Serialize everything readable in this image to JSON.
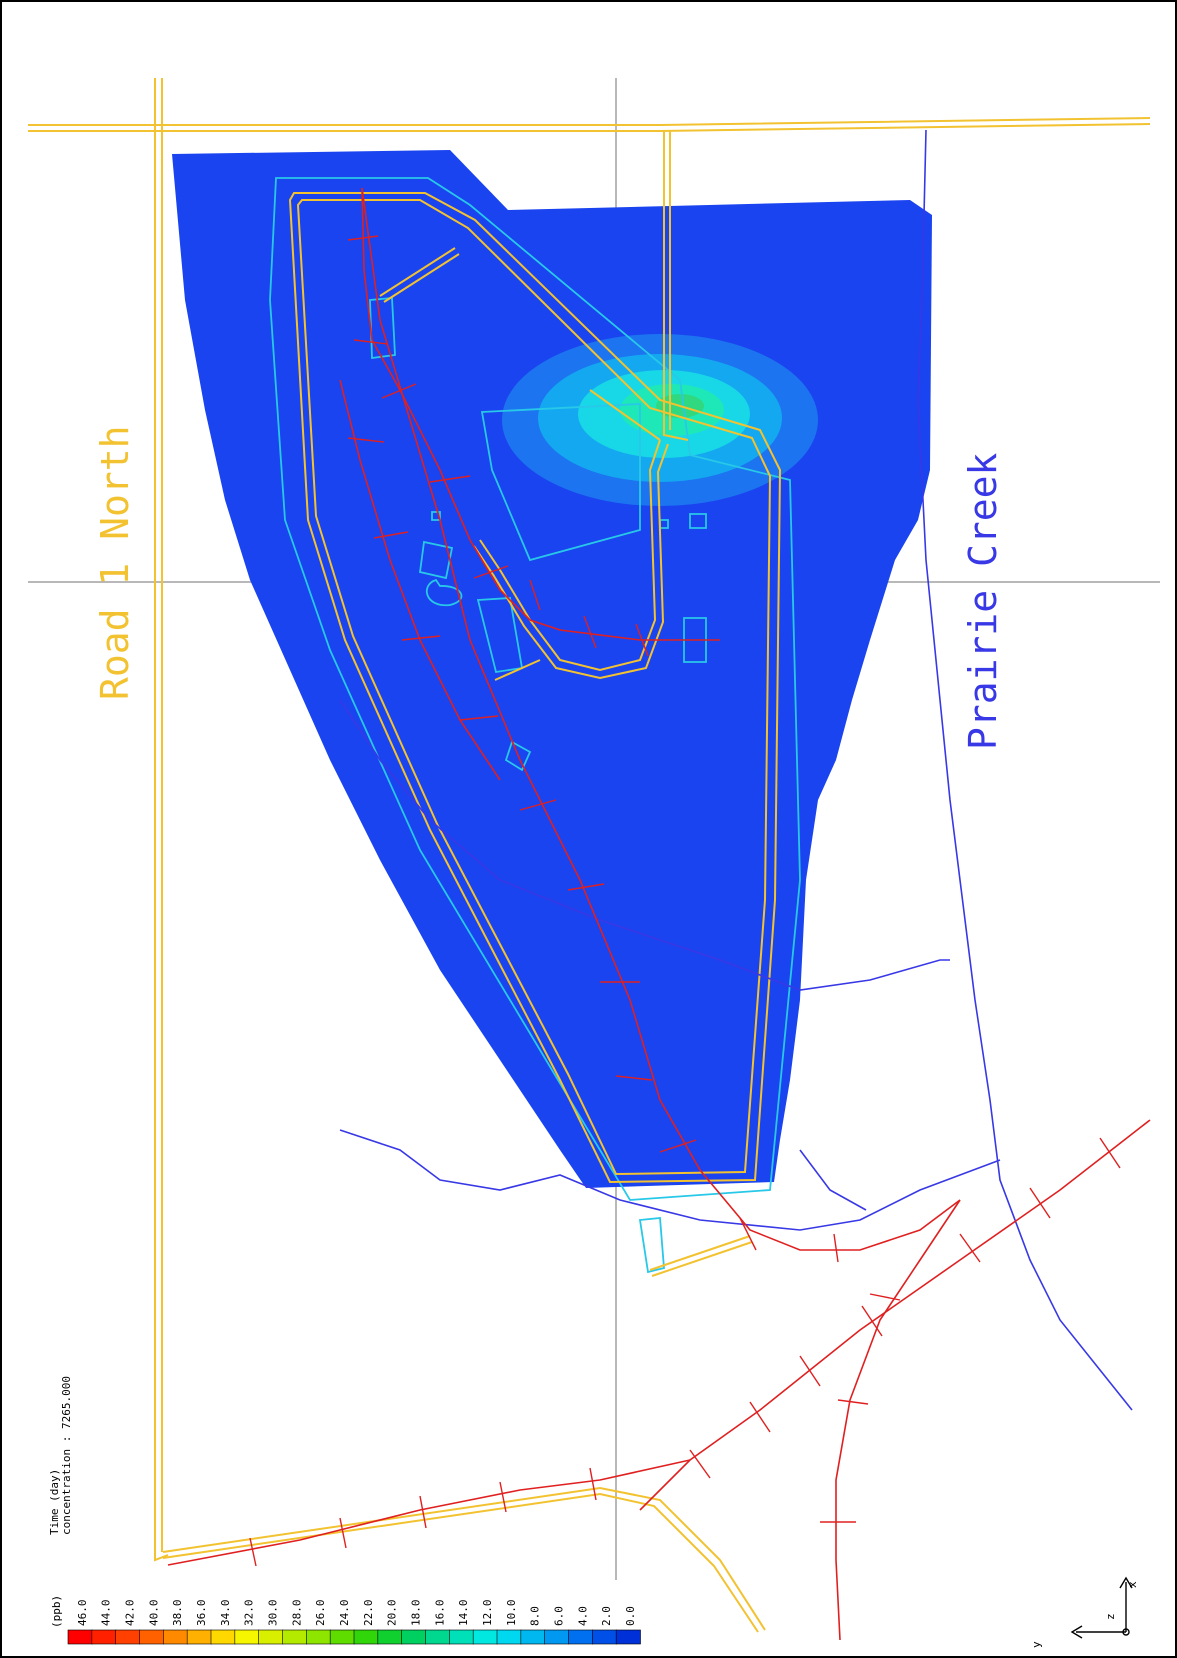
{
  "labels": {
    "road": "Road 1 North",
    "creek": "Prairie Creek"
  },
  "time": {
    "label": "Time (day)",
    "value_text": "concentration : 7265.000"
  },
  "legend": {
    "unit": "(ppb)",
    "ticks": [
      "46.0",
      "44.0",
      "42.0",
      "40.0",
      "38.0",
      "36.0",
      "34.0",
      "32.0",
      "30.0",
      "28.0",
      "26.0",
      "24.0",
      "22.0",
      "20.0",
      "18.0",
      "16.0",
      "14.0",
      "12.0",
      "10.0",
      "8.0",
      "6.0",
      "4.0",
      "2.0",
      "0.0"
    ],
    "colors": [
      "#ff0000",
      "#ff2000",
      "#ff4000",
      "#ff6000",
      "#ff8a00",
      "#ffb000",
      "#ffd800",
      "#f6f600",
      "#d8f000",
      "#b4ea00",
      "#8ee600",
      "#60dd00",
      "#30d60a",
      "#10d030",
      "#00d060",
      "#00d890",
      "#00e0b8",
      "#00e8e0",
      "#00d8f0",
      "#00b8f0",
      "#0098f0",
      "#0070f0",
      "#0050e8",
      "#0030d8"
    ]
  },
  "axes": {
    "y": "y",
    "z": "z",
    "x": "x"
  },
  "colors": {
    "road": "#f2c230",
    "creek": "#3838e6",
    "rail": "#e02020",
    "plume": "#1a44f0",
    "boundary": "#28c8e8",
    "grid": "#a0a0a0"
  }
}
